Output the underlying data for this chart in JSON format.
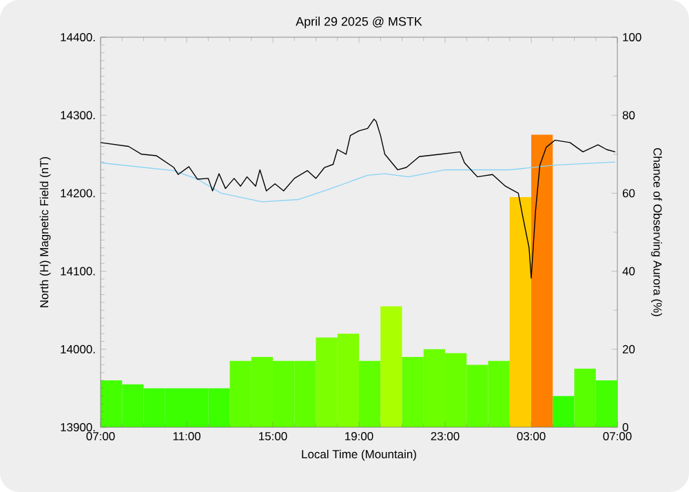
{
  "chart_data": {
    "type": "line",
    "title": "April 29 2025 @ MSTK",
    "xlabel": "Local Time (Mountain)",
    "ylabel": "North (H) Magnetic Field (nT)",
    "y2label": "Chance of Observing Aurora (%)",
    "xlim": [
      "2025-04-29T07:00",
      "2025-04-30T07:00"
    ],
    "xticks": [
      {
        "value": "2025-04-29T07:00",
        "label": "07:00"
      },
      {
        "value": "2025-04-29T11:00",
        "label": "11:00"
      },
      {
        "value": "2025-04-29T15:00",
        "label": "15:00"
      },
      {
        "value": "2025-04-29T19:00",
        "label": "19:00"
      },
      {
        "value": "2025-04-29T23:00",
        "label": "23:00"
      },
      {
        "value": "2025-04-30T03:00",
        "label": "03:00"
      },
      {
        "value": "2025-04-30T07:00",
        "label": "07:00"
      }
    ],
    "ylim": [
      13900,
      14400
    ],
    "yticks": [
      {
        "value": 13900,
        "label": "13900."
      },
      {
        "value": 14000,
        "label": "14000."
      },
      {
        "value": 14100,
        "label": "14100."
      },
      {
        "value": 14200,
        "label": "14200."
      },
      {
        "value": 14300,
        "label": "14300."
      },
      {
        "value": 14400,
        "label": "14400."
      }
    ],
    "y2lim": [
      0,
      100
    ],
    "y2ticks": [
      0,
      20,
      40,
      60,
      80,
      100
    ],
    "series": [
      {
        "type": "bar",
        "axis": "y2",
        "x": [
          "2025-04-29T07:30",
          "2025-04-29T08:30",
          "2025-04-29T09:30",
          "2025-04-29T10:30",
          "2025-04-29T11:30",
          "2025-04-29T12:30",
          "2025-04-29T13:30",
          "2025-04-29T14:30",
          "2025-04-29T15:30",
          "2025-04-29T16:30",
          "2025-04-29T17:30",
          "2025-04-29T18:30",
          "2025-04-29T19:30",
          "2025-04-29T20:30",
          "2025-04-29T21:30",
          "2025-04-29T22:30",
          "2025-04-29T23:30",
          "2025-04-30T00:30",
          "2025-04-30T01:30",
          "2025-04-30T02:30",
          "2025-04-30T03:30",
          "2025-04-30T04:30",
          "2025-04-30T05:30",
          "2025-04-30T06:30"
        ],
        "values": [
          12,
          11,
          10,
          10,
          10,
          10,
          17,
          18,
          17,
          17,
          23,
          24,
          17,
          31,
          18,
          20,
          19,
          16,
          17,
          59,
          75,
          8,
          15,
          12
        ],
        "colors": [
          "#44ff00",
          "#40ff00",
          "#3cff00",
          "#3cff00",
          "#3cff00",
          "#3cff00",
          "#60ff00",
          "#64ff00",
          "#60ff00",
          "#60ff00",
          "#7cff00",
          "#80ff00",
          "#60ff00",
          "#aaff00",
          "#64ff00",
          "#6cff00",
          "#6aff00",
          "#5cff00",
          "#60ff00",
          "#ffcc00",
          "#ff8000",
          "#33ff00",
          "#58ff00",
          "#44ff00"
        ]
      },
      {
        "color": "#87d3f5",
        "x": [
          "2025-04-29T07:00",
          "2025-04-29T10:24",
          "2025-04-29T11:30",
          "2025-04-29T12:36",
          "2025-04-29T14:30",
          "2025-04-29T16:12",
          "2025-04-29T17:42",
          "2025-04-29T19:24",
          "2025-04-29T20:12",
          "2025-04-29T21:18",
          "2025-04-29T23:00",
          "2025-04-30T02:00",
          "2025-04-30T04:06",
          "2025-04-30T06:54"
        ],
        "values": [
          14239,
          14229,
          14218,
          14200,
          14189,
          14192,
          14206,
          14223,
          14225,
          14221,
          14230,
          14230,
          14236,
          14240
        ]
      },
      {
        "color": "#000000",
        "x": [
          "2025-04-29T07:00",
          "2025-04-29T08:18",
          "2025-04-29T08:54",
          "2025-04-29T09:36",
          "2025-04-29T10:24",
          "2025-04-29T10:36",
          "2025-04-29T11:06",
          "2025-04-29T11:30",
          "2025-04-29T12:00",
          "2025-04-29T12:12",
          "2025-04-29T12:30",
          "2025-04-29T12:48",
          "2025-04-29T13:12",
          "2025-04-29T13:30",
          "2025-04-29T13:48",
          "2025-04-29T14:12",
          "2025-04-29T14:24",
          "2025-04-29T14:42",
          "2025-04-29T15:06",
          "2025-04-29T15:30",
          "2025-04-29T16:00",
          "2025-04-29T16:36",
          "2025-04-29T17:00",
          "2025-04-29T17:24",
          "2025-04-29T17:48",
          "2025-04-29T18:00",
          "2025-04-29T18:24",
          "2025-04-29T18:36",
          "2025-04-29T19:00",
          "2025-04-29T19:24",
          "2025-04-29T19:42",
          "2025-04-29T19:48",
          "2025-04-29T20:00",
          "2025-04-29T20:12",
          "2025-04-29T20:48",
          "2025-04-29T21:12",
          "2025-04-29T21:48",
          "2025-04-29T22:48",
          "2025-04-29T23:42",
          "2025-04-29T23:54",
          "2025-04-30T00:30",
          "2025-04-30T01:12",
          "2025-04-30T01:48",
          "2025-04-30T02:24",
          "2025-04-30T02:36",
          "2025-04-30T02:54",
          "2025-04-30T03:00",
          "2025-04-30T03:12",
          "2025-04-30T03:24",
          "2025-04-30T03:42",
          "2025-04-30T04:06",
          "2025-04-30T04:48",
          "2025-04-30T05:24",
          "2025-04-30T06:06",
          "2025-04-30T06:30",
          "2025-04-30T06:54"
        ],
        "values": [
          14265,
          14260,
          14250,
          14248,
          14233,
          14224,
          14234,
          14218,
          14219,
          14203,
          14225,
          14206,
          14219,
          14209,
          14221,
          14209,
          14230,
          14203,
          14212,
          14203,
          14219,
          14229,
          14219,
          14233,
          14237,
          14256,
          14250,
          14274,
          14280,
          14283,
          14295,
          14292,
          14274,
          14250,
          14230,
          14233,
          14247,
          14250,
          14253,
          14239,
          14221,
          14224,
          14209,
          14200,
          14171,
          14130,
          14091,
          14177,
          14236,
          14259,
          14268,
          14265,
          14253,
          14262,
          14256,
          14253
        ]
      }
    ]
  }
}
